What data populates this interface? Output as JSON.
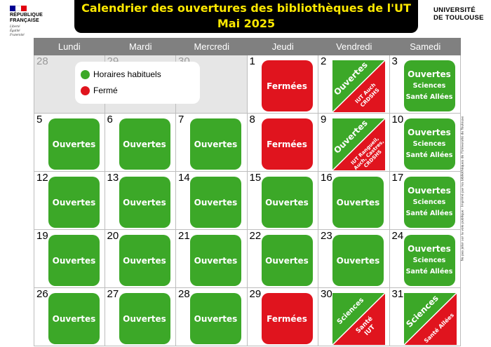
{
  "republique": {
    "line1": "RÉPUBLIQUE",
    "line2": "FRANÇAISE",
    "motto": "Liberté Égalité Fraternité",
    "flag_colors": [
      "#000091",
      "#ffffff",
      "#e1000f"
    ]
  },
  "title": {
    "line1": "Calendrier des ouvertures des bibliothèques de l'UT",
    "line2": "Mai 2025"
  },
  "ut_logo": {
    "line1": "UNIVERSITÉ",
    "line2": "DE TOULOUSE"
  },
  "weekdays": [
    "Lundi",
    "Mardi",
    "Mercredi",
    "Jeudi",
    "Vendredi",
    "Samedi"
  ],
  "legend": {
    "usual": "Horaires habituels",
    "closed": "Fermé",
    "usual_color": "#3ca828",
    "closed_color": "#e0141e"
  },
  "labels": {
    "open": "Ouvertes",
    "closed": "Fermées",
    "sciences": "Sciences",
    "sante_allees": "Santé Allées",
    "iut_auch_cr": "IUT Auch CRDSHS",
    "iut_rangueil_line1": "IUT Rangueil,",
    "iut_rangueil_line2": "Auch, Castres,",
    "iut_rangueil_line3": "CRDSHS",
    "sante_iut_line1": "Santé",
    "sante_iut_line2": "IUT"
  },
  "days": {
    "d28a": "28",
    "d29a": "29",
    "d30a": "30",
    "d1": "1",
    "d2": "2",
    "d3": "3",
    "d5": "5",
    "d6": "6",
    "d7": "7",
    "d8": "8",
    "d9": "9",
    "d10": "10",
    "d12": "12",
    "d13": "13",
    "d14": "14",
    "d15": "15",
    "d16": "16",
    "d17": "17",
    "d19": "19",
    "d20": "20",
    "d21": "21",
    "d22": "22",
    "d23": "23",
    "d24": "24",
    "d26": "26",
    "d27": "27",
    "d28": "28",
    "d29": "29",
    "d30": "30",
    "d31": "31"
  },
  "side_note": "Ne pas jeter sur la voie publique · Imprimé par les bibliothèques de l'Université de Toulouse"
}
